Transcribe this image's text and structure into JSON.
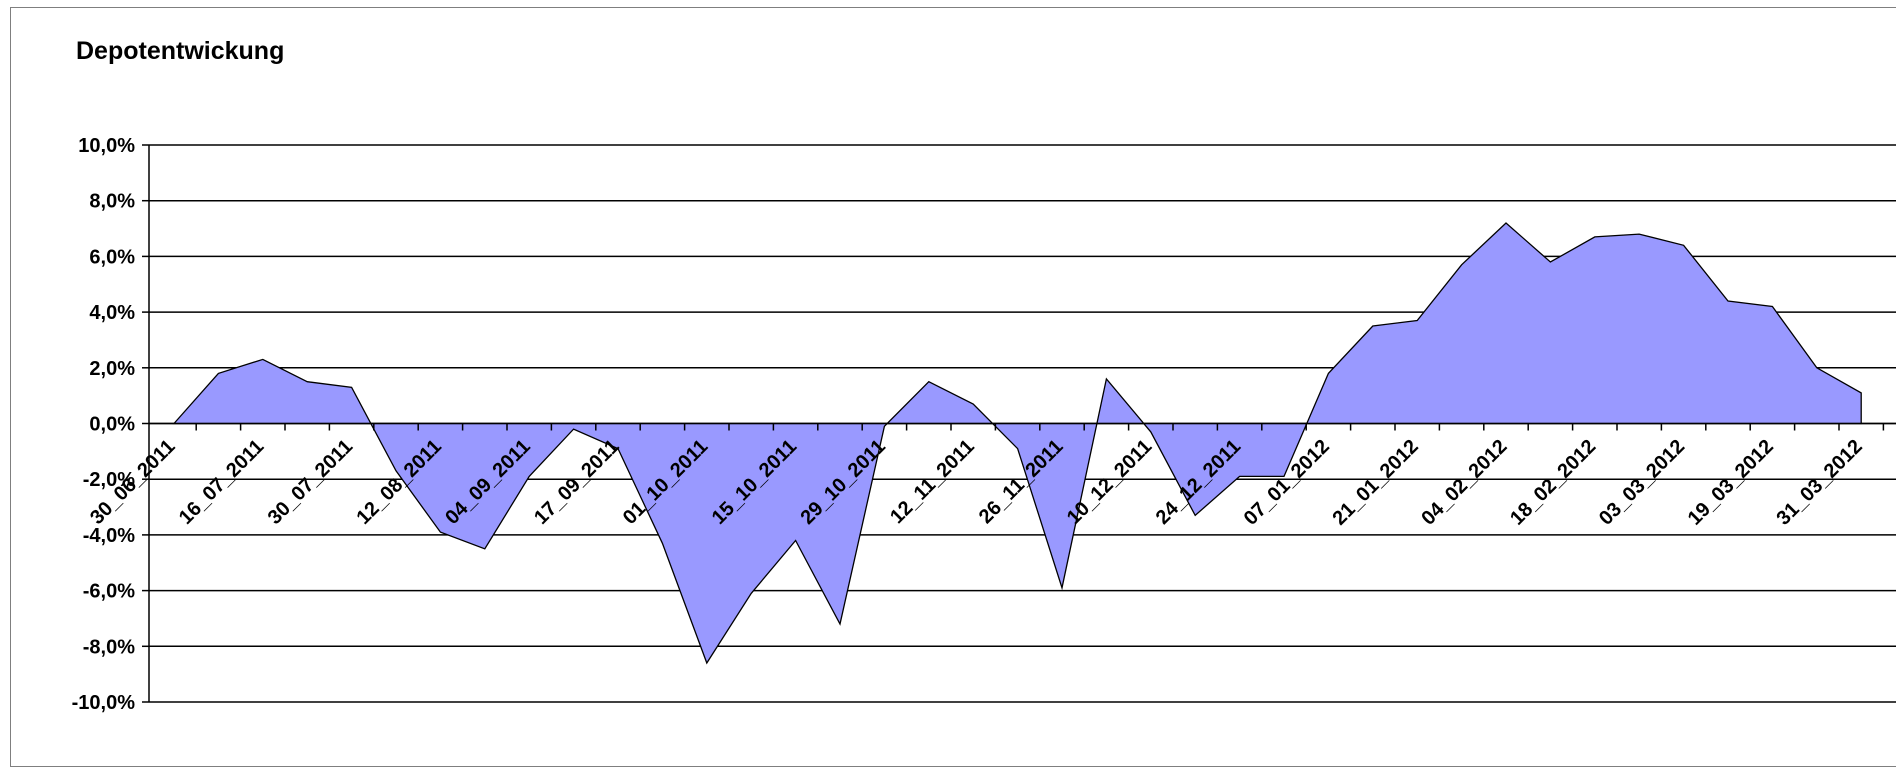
{
  "chart_data": {
    "type": "area",
    "title": "Depotentwickung",
    "xlabel": "",
    "ylabel": "",
    "ylim": [
      -10,
      10
    ],
    "y_ticks": [
      10,
      8,
      6,
      4,
      2,
      0,
      -2,
      -4,
      -6,
      -8,
      -10
    ],
    "y_tick_labels": [
      "10,0%",
      "8,0%",
      "6,0%",
      "4,0%",
      "2,0%",
      "0,0%",
      "-2,0%",
      "-4,0%",
      "-6,0%",
      "-8,0%",
      "-10,0%"
    ],
    "x_tick_labels": [
      "30_06_2011",
      "16_07_2011",
      "30_07_2011",
      "12_08_2011",
      "04_09_2011",
      "17_09_2011",
      "01_10_2011",
      "15_10_2011",
      "29_10_2011",
      "12_11_2011",
      "26_11_2011",
      "10_12_2011",
      "24_12_2011",
      "07_01_2012",
      "21_01_2012",
      "04_02_2012",
      "18_02_2012",
      "03_03_2012",
      "19_03_2012",
      "31_03_2012"
    ],
    "grid": true,
    "legend": "none",
    "series": [
      {
        "values": [
          0.0,
          1.8,
          2.3,
          1.5,
          1.3,
          -1.7,
          -3.9,
          -4.5,
          -1.9,
          -0.2,
          -0.9,
          -4.3,
          -8.6,
          -6.1,
          -4.2,
          -7.2,
          -0.1,
          1.5,
          0.7,
          -0.9,
          -5.9,
          1.6,
          -0.3,
          -3.3,
          -1.9,
          -1.9,
          1.8,
          3.5,
          3.7,
          5.7,
          7.2,
          5.8,
          6.7,
          6.8,
          6.4,
          4.4,
          4.2,
          2.0,
          1.1
        ],
        "color": "#9999ff"
      }
    ],
    "colors": {
      "fill": "#9999ff",
      "outline": "#000000",
      "grid": "#000000"
    }
  }
}
